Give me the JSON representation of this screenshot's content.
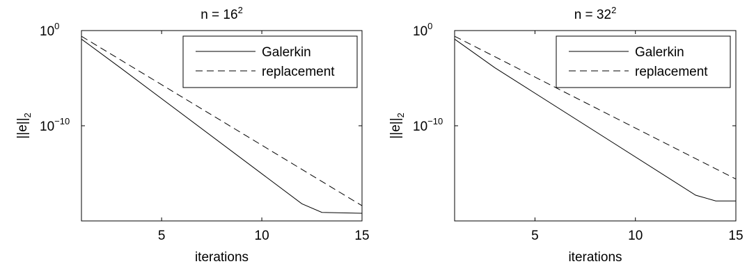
{
  "chart_data": [
    {
      "type": "line",
      "title": "n = 16",
      "title_sup": "2",
      "xlabel": "iterations",
      "ylabel": "||e||",
      "ylabel_sub": "2",
      "xlim": [
        1,
        15
      ],
      "ylim_log10": [
        -20,
        0
      ],
      "yscale": "log",
      "x_ticks": [
        5,
        10,
        15
      ],
      "x_tick_labels": [
        "5",
        "10",
        "15"
      ],
      "y_ticks_log10": [
        0,
        -10
      ],
      "y_tick_labels": [
        {
          "base": "10",
          "exp": "0"
        },
        {
          "base": "10",
          "exp": "−10"
        }
      ],
      "grid": false,
      "legend_position": "top-right",
      "series": [
        {
          "name": "Galerkin",
          "style": "solid",
          "color": "#000000",
          "x": [
            1,
            3,
            12,
            13,
            15
          ],
          "log10_y": [
            -0.9,
            -4.0,
            -18.2,
            -19.1,
            -19.2
          ]
        },
        {
          "name": "replacement",
          "style": "dashed",
          "color": "#000000",
          "x": [
            1,
            15
          ],
          "log10_y": [
            -0.6,
            -18.4
          ]
        }
      ]
    },
    {
      "type": "line",
      "title": "n = 32",
      "title_sup": "2",
      "xlabel": "iterations",
      "ylabel": "||e||",
      "ylabel_sub": "2",
      "xlim": [
        1,
        15
      ],
      "ylim_log10": [
        -20,
        0
      ],
      "yscale": "log",
      "x_ticks": [
        5,
        10,
        15
      ],
      "x_tick_labels": [
        "5",
        "10",
        "15"
      ],
      "y_ticks_log10": [
        0,
        -10
      ],
      "y_tick_labels": [
        {
          "base": "10",
          "exp": "0"
        },
        {
          "base": "10",
          "exp": "−10"
        }
      ],
      "grid": false,
      "legend_position": "top-right",
      "series": [
        {
          "name": "Galerkin",
          "style": "solid",
          "color": "#000000",
          "x": [
            1,
            3,
            13,
            14,
            15
          ],
          "log10_y": [
            -0.9,
            -3.9,
            -17.3,
            -17.9,
            -17.9
          ]
        },
        {
          "name": "replacement",
          "style": "dashed",
          "color": "#000000",
          "x": [
            1,
            15
          ],
          "log10_y": [
            -0.6,
            -15.6
          ]
        }
      ]
    }
  ]
}
